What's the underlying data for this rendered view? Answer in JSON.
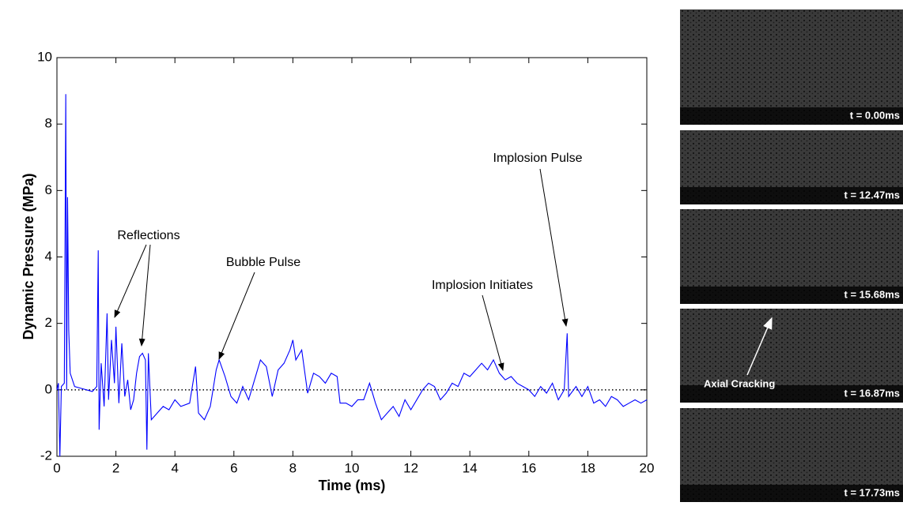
{
  "chart_data": {
    "type": "line",
    "x_label": "Time (ms)",
    "y_label": "Dynamic Pressure (MPa)",
    "xlim": [
      0,
      20
    ],
    "ylim": [
      -2,
      10
    ],
    "xticks": [
      0,
      2,
      4,
      6,
      8,
      10,
      12,
      14,
      16,
      18,
      20
    ],
    "yticks": [
      -2,
      0,
      2,
      4,
      6,
      8,
      10
    ],
    "reference_line": 0,
    "series": [
      {
        "color": "#0000ff",
        "x": [
          0,
          0.05,
          0.1,
          0.15,
          0.25,
          0.3,
          0.33,
          0.36,
          0.4,
          0.45,
          0.6,
          0.8,
          1.0,
          1.2,
          1.35,
          1.4,
          1.43,
          1.5,
          1.6,
          1.7,
          1.75,
          1.85,
          1.95,
          2.0,
          2.1,
          2.2,
          2.3,
          2.4,
          2.5,
          2.6,
          2.7,
          2.8,
          2.9,
          3.0,
          3.05,
          3.1,
          3.2,
          3.4,
          3.6,
          3.8,
          4.0,
          4.2,
          4.5,
          4.7,
          4.8,
          5.0,
          5.2,
          5.4,
          5.5,
          5.7,
          5.9,
          6.1,
          6.3,
          6.5,
          6.7,
          6.9,
          7.1,
          7.3,
          7.5,
          7.7,
          7.9,
          8.0,
          8.1,
          8.3,
          8.5,
          8.7,
          8.9,
          9.1,
          9.3,
          9.5,
          9.6,
          9.8,
          10.0,
          10.2,
          10.4,
          10.6,
          10.8,
          11.0,
          11.2,
          11.4,
          11.6,
          11.8,
          12.0,
          12.2,
          12.4,
          12.6,
          12.8,
          13.0,
          13.2,
          13.4,
          13.6,
          13.8,
          14.0,
          14.2,
          14.4,
          14.6,
          14.8,
          15.0,
          15.2,
          15.4,
          15.6,
          15.8,
          16.0,
          16.2,
          16.4,
          16.6,
          16.8,
          17.0,
          17.2,
          17.3,
          17.35,
          17.6,
          17.8,
          18.0,
          18.2,
          18.4,
          18.6,
          18.8,
          19.0,
          19.2,
          19.4,
          19.6,
          19.8,
          20.0
        ],
        "values": [
          0,
          0.2,
          -2,
          0.1,
          0.2,
          8.9,
          0,
          5.8,
          1.8,
          0.5,
          0.1,
          0.05,
          0,
          -0.05,
          0.1,
          4.2,
          -1.2,
          0.8,
          -0.5,
          2.3,
          -0.3,
          1.5,
          0.2,
          1.9,
          -0.4,
          1.4,
          -0.2,
          0.3,
          -0.6,
          -0.3,
          0.5,
          1.0,
          1.1,
          0.9,
          -1.8,
          1.1,
          -0.9,
          -0.7,
          -0.5,
          -0.6,
          -0.3,
          -0.5,
          -0.4,
          0.7,
          -0.7,
          -0.9,
          -0.5,
          0.6,
          0.9,
          0.4,
          -0.2,
          -0.4,
          0.1,
          -0.3,
          0.3,
          0.9,
          0.7,
          -0.2,
          0.6,
          0.8,
          1.2,
          1.5,
          0.9,
          1.2,
          -0.1,
          0.5,
          0.4,
          0.2,
          0.5,
          0.4,
          -0.4,
          -0.4,
          -0.5,
          -0.3,
          -0.3,
          0.2,
          -0.4,
          -0.9,
          -0.7,
          -0.5,
          -0.8,
          -0.3,
          -0.6,
          -0.3,
          0.0,
          0.2,
          0.1,
          -0.3,
          -0.1,
          0.2,
          0.1,
          0.5,
          0.4,
          0.6,
          0.8,
          0.6,
          0.9,
          0.5,
          0.3,
          0.4,
          0.2,
          0.1,
          0.0,
          -0.2,
          0.1,
          -0.1,
          0.2,
          -0.3,
          0.0,
          1.7,
          -0.2,
          0.1,
          -0.2,
          0.1,
          -0.4,
          -0.3,
          -0.5,
          -0.2,
          -0.3,
          -0.5,
          -0.4,
          -0.3,
          -0.4,
          -0.3
        ]
      }
    ],
    "annotations": [
      "Reflections",
      "Bubble Pulse",
      "Implosion Initiates",
      "Implosion Pulse"
    ]
  },
  "panels": [
    {
      "label": "t = 0.00ms"
    },
    {
      "label": "t = 12.47ms"
    },
    {
      "label": "t = 15.68ms"
    },
    {
      "label": "t = 16.87ms",
      "annotation": "Axial Cracking"
    },
    {
      "label": "t = 17.73ms"
    }
  ]
}
